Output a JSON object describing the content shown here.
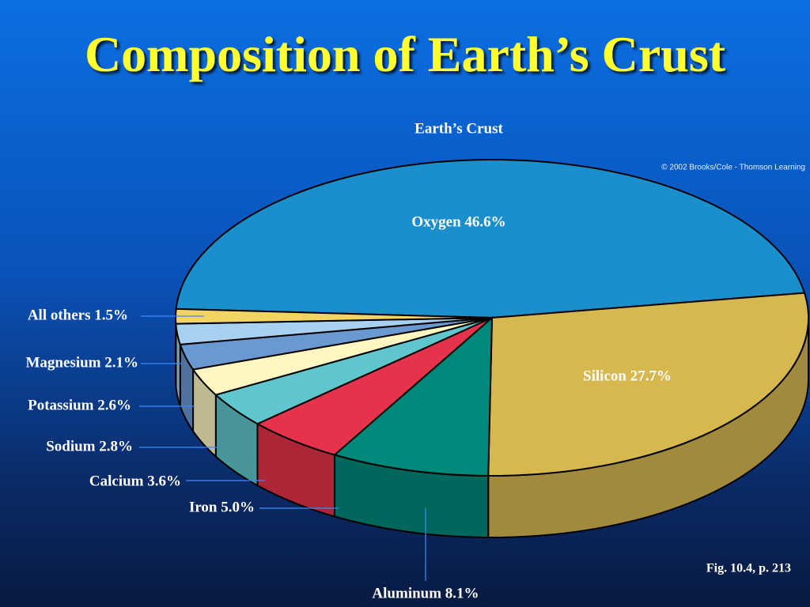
{
  "chart_data": {
    "type": "pie3d",
    "title": "Composition of Earth’s Crust",
    "subtitle": "Earth’s Crust",
    "credit": "© 2002 Brooks/Cole - Thomson Learning",
    "caption": "Fig. 10.4, p. 213",
    "values": [
      46.6,
      27.7,
      8.1,
      5.0,
      3.6,
      2.8,
      2.6,
      2.1,
      1.5
    ],
    "value_labels": [
      "Oxygen 46.6%",
      "Silicon 27.7%",
      "Aluminum 8.1%",
      "Iron 5.0%",
      "Calcium 3.6%",
      "Sodium 2.8%",
      "Potassium 2.6%",
      "Magnesium 2.1%",
      "All others 1.5%"
    ],
    "colors": [
      "#1b8fcb",
      "#d6b84f",
      "#00897a",
      "#e6334b",
      "#5ec6cc",
      "#fff6c2",
      "#6a98d0",
      "#a8d0f0",
      "#f2d463"
    ]
  }
}
